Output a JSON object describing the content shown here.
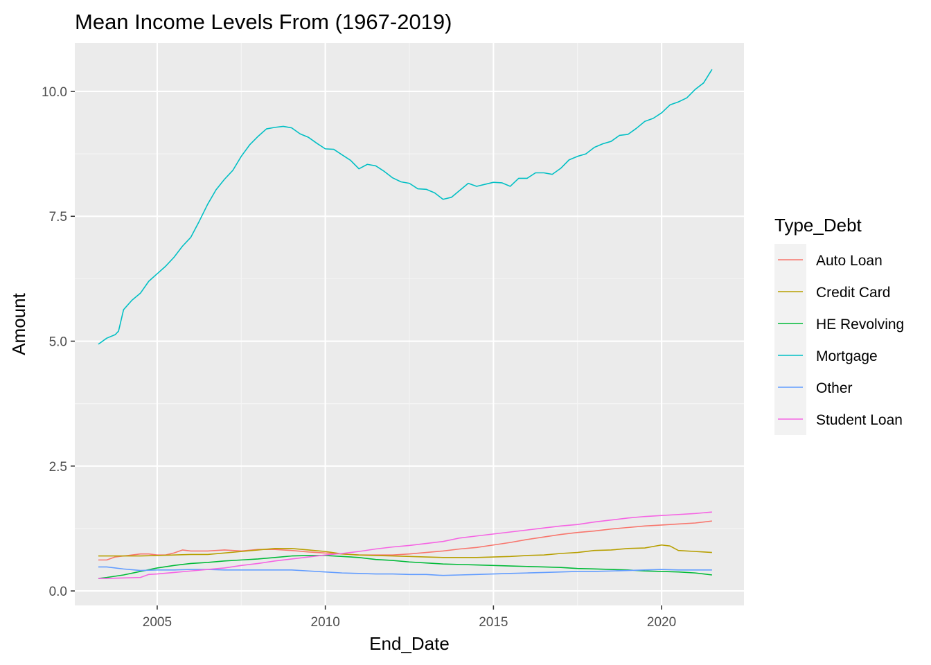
{
  "chart_data": {
    "type": "line",
    "title": "Mean Income Levels From (1967-2019)",
    "xlabel": "End_Date",
    "ylabel": "Amount",
    "xlim": [
      2002.55,
      2022.45
    ],
    "ylim": [
      -0.29,
      10.97
    ],
    "x_ticks": [
      2005,
      2010,
      2015,
      2020
    ],
    "x_tick_labels": [
      "2005",
      "2010",
      "2015",
      "2020"
    ],
    "y_ticks": [
      0,
      2.5,
      5,
      7.5,
      10
    ],
    "y_tick_labels": [
      "0.0",
      "2.5",
      "5.0",
      "7.5",
      "10.0"
    ],
    "grid": true,
    "legend_position": "right",
    "legend_title": "Type_Debt",
    "colors": {
      "panel_bg": "#ebebeb",
      "grid_major": "#ffffff",
      "grid_minor": "#f5f5f5",
      "legend_key_bg": "#f2f2f2"
    },
    "series": [
      {
        "name": "Auto Loan",
        "color": "#F8766D",
        "points": [
          [
            2003.25,
            0.62
          ],
          [
            2003.5,
            0.62
          ],
          [
            2003.75,
            0.68
          ],
          [
            2004.0,
            0.7
          ],
          [
            2004.25,
            0.72
          ],
          [
            2004.5,
            0.74
          ],
          [
            2004.75,
            0.74
          ],
          [
            2005.0,
            0.72
          ],
          [
            2005.25,
            0.72
          ],
          [
            2005.5,
            0.76
          ],
          [
            2005.75,
            0.82
          ],
          [
            2006.0,
            0.8
          ],
          [
            2006.5,
            0.8
          ],
          [
            2007.0,
            0.82
          ],
          [
            2007.5,
            0.8
          ],
          [
            2008.0,
            0.83
          ],
          [
            2008.5,
            0.83
          ],
          [
            2009.0,
            0.81
          ],
          [
            2009.5,
            0.78
          ],
          [
            2010.0,
            0.76
          ],
          [
            2010.5,
            0.74
          ],
          [
            2011.0,
            0.72
          ],
          [
            2011.5,
            0.72
          ],
          [
            2012.0,
            0.72
          ],
          [
            2012.5,
            0.74
          ],
          [
            2013.0,
            0.77
          ],
          [
            2013.5,
            0.8
          ],
          [
            2014.0,
            0.84
          ],
          [
            2014.5,
            0.87
          ],
          [
            2015.0,
            0.92
          ],
          [
            2015.5,
            0.97
          ],
          [
            2016.0,
            1.03
          ],
          [
            2016.5,
            1.08
          ],
          [
            2017.0,
            1.13
          ],
          [
            2017.5,
            1.17
          ],
          [
            2018.0,
            1.2
          ],
          [
            2018.5,
            1.24
          ],
          [
            2019.0,
            1.27
          ],
          [
            2019.5,
            1.3
          ],
          [
            2020.0,
            1.32
          ],
          [
            2020.5,
            1.34
          ],
          [
            2021.0,
            1.36
          ],
          [
            2021.5,
            1.4
          ]
        ]
      },
      {
        "name": "Credit Card",
        "color": "#B79F00",
        "points": [
          [
            2003.25,
            0.7
          ],
          [
            2003.5,
            0.7
          ],
          [
            2004.0,
            0.7
          ],
          [
            2004.5,
            0.7
          ],
          [
            2005.0,
            0.71
          ],
          [
            2005.5,
            0.72
          ],
          [
            2006.0,
            0.73
          ],
          [
            2006.5,
            0.73
          ],
          [
            2007.0,
            0.76
          ],
          [
            2007.5,
            0.79
          ],
          [
            2008.0,
            0.82
          ],
          [
            2008.5,
            0.85
          ],
          [
            2009.0,
            0.85
          ],
          [
            2009.5,
            0.82
          ],
          [
            2010.0,
            0.79
          ],
          [
            2010.5,
            0.74
          ],
          [
            2011.0,
            0.72
          ],
          [
            2011.5,
            0.71
          ],
          [
            2012.0,
            0.7
          ],
          [
            2012.5,
            0.69
          ],
          [
            2013.0,
            0.68
          ],
          [
            2013.5,
            0.67
          ],
          [
            2014.0,
            0.67
          ],
          [
            2014.5,
            0.67
          ],
          [
            2015.0,
            0.68
          ],
          [
            2015.5,
            0.69
          ],
          [
            2016.0,
            0.71
          ],
          [
            2016.5,
            0.72
          ],
          [
            2017.0,
            0.75
          ],
          [
            2017.5,
            0.77
          ],
          [
            2018.0,
            0.81
          ],
          [
            2018.5,
            0.82
          ],
          [
            2019.0,
            0.85
          ],
          [
            2019.5,
            0.86
          ],
          [
            2020.0,
            0.92
          ],
          [
            2020.25,
            0.9
          ],
          [
            2020.5,
            0.81
          ],
          [
            2021.0,
            0.79
          ],
          [
            2021.25,
            0.78
          ],
          [
            2021.5,
            0.77
          ]
        ]
      },
      {
        "name": "HE Revolving",
        "color": "#00BA38",
        "points": [
          [
            2003.25,
            0.25
          ],
          [
            2003.5,
            0.27
          ],
          [
            2004.0,
            0.32
          ],
          [
            2004.5,
            0.39
          ],
          [
            2005.0,
            0.46
          ],
          [
            2005.5,
            0.51
          ],
          [
            2006.0,
            0.55
          ],
          [
            2006.5,
            0.57
          ],
          [
            2007.0,
            0.6
          ],
          [
            2007.5,
            0.62
          ],
          [
            2008.0,
            0.64
          ],
          [
            2008.5,
            0.67
          ],
          [
            2009.0,
            0.7
          ],
          [
            2009.5,
            0.71
          ],
          [
            2010.0,
            0.71
          ],
          [
            2010.5,
            0.69
          ],
          [
            2011.0,
            0.67
          ],
          [
            2011.5,
            0.63
          ],
          [
            2012.0,
            0.61
          ],
          [
            2012.5,
            0.58
          ],
          [
            2013.0,
            0.56
          ],
          [
            2013.5,
            0.54
          ],
          [
            2014.0,
            0.53
          ],
          [
            2014.5,
            0.52
          ],
          [
            2015.0,
            0.51
          ],
          [
            2015.5,
            0.5
          ],
          [
            2016.0,
            0.49
          ],
          [
            2016.5,
            0.48
          ],
          [
            2017.0,
            0.47
          ],
          [
            2017.5,
            0.45
          ],
          [
            2018.0,
            0.44
          ],
          [
            2018.5,
            0.43
          ],
          [
            2019.0,
            0.42
          ],
          [
            2019.5,
            0.4
          ],
          [
            2020.0,
            0.39
          ],
          [
            2020.5,
            0.38
          ],
          [
            2021.0,
            0.36
          ],
          [
            2021.5,
            0.32
          ]
        ]
      },
      {
        "name": "Mortgage",
        "color": "#00BFC4",
        "points": [
          [
            2003.25,
            4.94
          ],
          [
            2003.5,
            5.06
          ],
          [
            2003.75,
            5.13
          ],
          [
            2003.85,
            5.2
          ],
          [
            2004.0,
            5.63
          ],
          [
            2004.25,
            5.82
          ],
          [
            2004.5,
            5.96
          ],
          [
            2004.75,
            6.2
          ],
          [
            2005.0,
            6.35
          ],
          [
            2005.25,
            6.5
          ],
          [
            2005.5,
            6.68
          ],
          [
            2005.75,
            6.9
          ],
          [
            2006.0,
            7.08
          ],
          [
            2006.25,
            7.4
          ],
          [
            2006.5,
            7.74
          ],
          [
            2006.75,
            8.03
          ],
          [
            2007.0,
            8.24
          ],
          [
            2007.25,
            8.42
          ],
          [
            2007.5,
            8.7
          ],
          [
            2007.75,
            8.93
          ],
          [
            2008.0,
            9.1
          ],
          [
            2008.25,
            9.25
          ],
          [
            2008.5,
            9.28
          ],
          [
            2008.75,
            9.3
          ],
          [
            2009.0,
            9.27
          ],
          [
            2009.25,
            9.15
          ],
          [
            2009.5,
            9.08
          ],
          [
            2009.75,
            8.96
          ],
          [
            2010.0,
            8.85
          ],
          [
            2010.25,
            8.84
          ],
          [
            2010.5,
            8.73
          ],
          [
            2010.75,
            8.62
          ],
          [
            2011.0,
            8.45
          ],
          [
            2011.25,
            8.54
          ],
          [
            2011.5,
            8.51
          ],
          [
            2011.75,
            8.4
          ],
          [
            2012.0,
            8.27
          ],
          [
            2012.25,
            8.19
          ],
          [
            2012.5,
            8.16
          ],
          [
            2012.75,
            8.05
          ],
          [
            2013.0,
            8.04
          ],
          [
            2013.25,
            7.97
          ],
          [
            2013.5,
            7.84
          ],
          [
            2013.75,
            7.88
          ],
          [
            2014.0,
            8.02
          ],
          [
            2014.25,
            8.16
          ],
          [
            2014.5,
            8.1
          ],
          [
            2014.75,
            8.14
          ],
          [
            2015.0,
            8.18
          ],
          [
            2015.25,
            8.17
          ],
          [
            2015.5,
            8.1
          ],
          [
            2015.75,
            8.26
          ],
          [
            2016.0,
            8.26
          ],
          [
            2016.25,
            8.37
          ],
          [
            2016.5,
            8.37
          ],
          [
            2016.75,
            8.34
          ],
          [
            2017.0,
            8.46
          ],
          [
            2017.25,
            8.63
          ],
          [
            2017.5,
            8.7
          ],
          [
            2017.75,
            8.75
          ],
          [
            2018.0,
            8.88
          ],
          [
            2018.25,
            8.95
          ],
          [
            2018.5,
            9.0
          ],
          [
            2018.75,
            9.12
          ],
          [
            2019.0,
            9.14
          ],
          [
            2019.25,
            9.26
          ],
          [
            2019.5,
            9.4
          ],
          [
            2019.75,
            9.46
          ],
          [
            2020.0,
            9.57
          ],
          [
            2020.25,
            9.73
          ],
          [
            2020.5,
            9.79
          ],
          [
            2020.75,
            9.87
          ],
          [
            2021.0,
            10.04
          ],
          [
            2021.25,
            10.17
          ],
          [
            2021.5,
            10.44
          ]
        ]
      },
      {
        "name": "Other",
        "color": "#619CFF",
        "points": [
          [
            2003.25,
            0.48
          ],
          [
            2003.5,
            0.48
          ],
          [
            2004.0,
            0.44
          ],
          [
            2004.5,
            0.41
          ],
          [
            2005.0,
            0.42
          ],
          [
            2005.5,
            0.42
          ],
          [
            2006.0,
            0.43
          ],
          [
            2006.5,
            0.43
          ],
          [
            2007.0,
            0.42
          ],
          [
            2007.5,
            0.42
          ],
          [
            2008.0,
            0.42
          ],
          [
            2008.5,
            0.42
          ],
          [
            2009.0,
            0.42
          ],
          [
            2009.5,
            0.4
          ],
          [
            2010.0,
            0.38
          ],
          [
            2010.5,
            0.36
          ],
          [
            2011.0,
            0.35
          ],
          [
            2011.5,
            0.34
          ],
          [
            2012.0,
            0.34
          ],
          [
            2012.5,
            0.33
          ],
          [
            2013.0,
            0.33
          ],
          [
            2013.5,
            0.31
          ],
          [
            2014.0,
            0.32
          ],
          [
            2014.5,
            0.33
          ],
          [
            2015.0,
            0.34
          ],
          [
            2015.5,
            0.35
          ],
          [
            2016.0,
            0.36
          ],
          [
            2016.5,
            0.37
          ],
          [
            2017.0,
            0.38
          ],
          [
            2017.5,
            0.39
          ],
          [
            2018.0,
            0.39
          ],
          [
            2018.5,
            0.4
          ],
          [
            2019.0,
            0.41
          ],
          [
            2019.5,
            0.42
          ],
          [
            2020.0,
            0.43
          ],
          [
            2020.5,
            0.42
          ],
          [
            2021.0,
            0.42
          ],
          [
            2021.5,
            0.42
          ]
        ]
      },
      {
        "name": "Student Loan",
        "color": "#F564E3",
        "points": [
          [
            2003.25,
            0.25
          ],
          [
            2003.5,
            0.25
          ],
          [
            2004.0,
            0.26
          ],
          [
            2004.5,
            0.27
          ],
          [
            2004.75,
            0.33
          ],
          [
            2005.0,
            0.34
          ],
          [
            2005.5,
            0.37
          ],
          [
            2006.0,
            0.4
          ],
          [
            2006.5,
            0.43
          ],
          [
            2007.0,
            0.46
          ],
          [
            2007.5,
            0.51
          ],
          [
            2008.0,
            0.55
          ],
          [
            2008.5,
            0.6
          ],
          [
            2009.0,
            0.64
          ],
          [
            2009.5,
            0.68
          ],
          [
            2010.0,
            0.72
          ],
          [
            2010.5,
            0.75
          ],
          [
            2011.0,
            0.79
          ],
          [
            2011.5,
            0.84
          ],
          [
            2012.0,
            0.88
          ],
          [
            2012.5,
            0.91
          ],
          [
            2013.0,
            0.95
          ],
          [
            2013.5,
            0.99
          ],
          [
            2014.0,
            1.06
          ],
          [
            2014.5,
            1.1
          ],
          [
            2015.0,
            1.14
          ],
          [
            2015.5,
            1.18
          ],
          [
            2016.0,
            1.22
          ],
          [
            2016.5,
            1.26
          ],
          [
            2017.0,
            1.3
          ],
          [
            2017.5,
            1.33
          ],
          [
            2018.0,
            1.38
          ],
          [
            2018.5,
            1.42
          ],
          [
            2019.0,
            1.46
          ],
          [
            2019.5,
            1.49
          ],
          [
            2020.0,
            1.51
          ],
          [
            2020.5,
            1.53
          ],
          [
            2021.0,
            1.55
          ],
          [
            2021.5,
            1.58
          ]
        ]
      }
    ]
  }
}
